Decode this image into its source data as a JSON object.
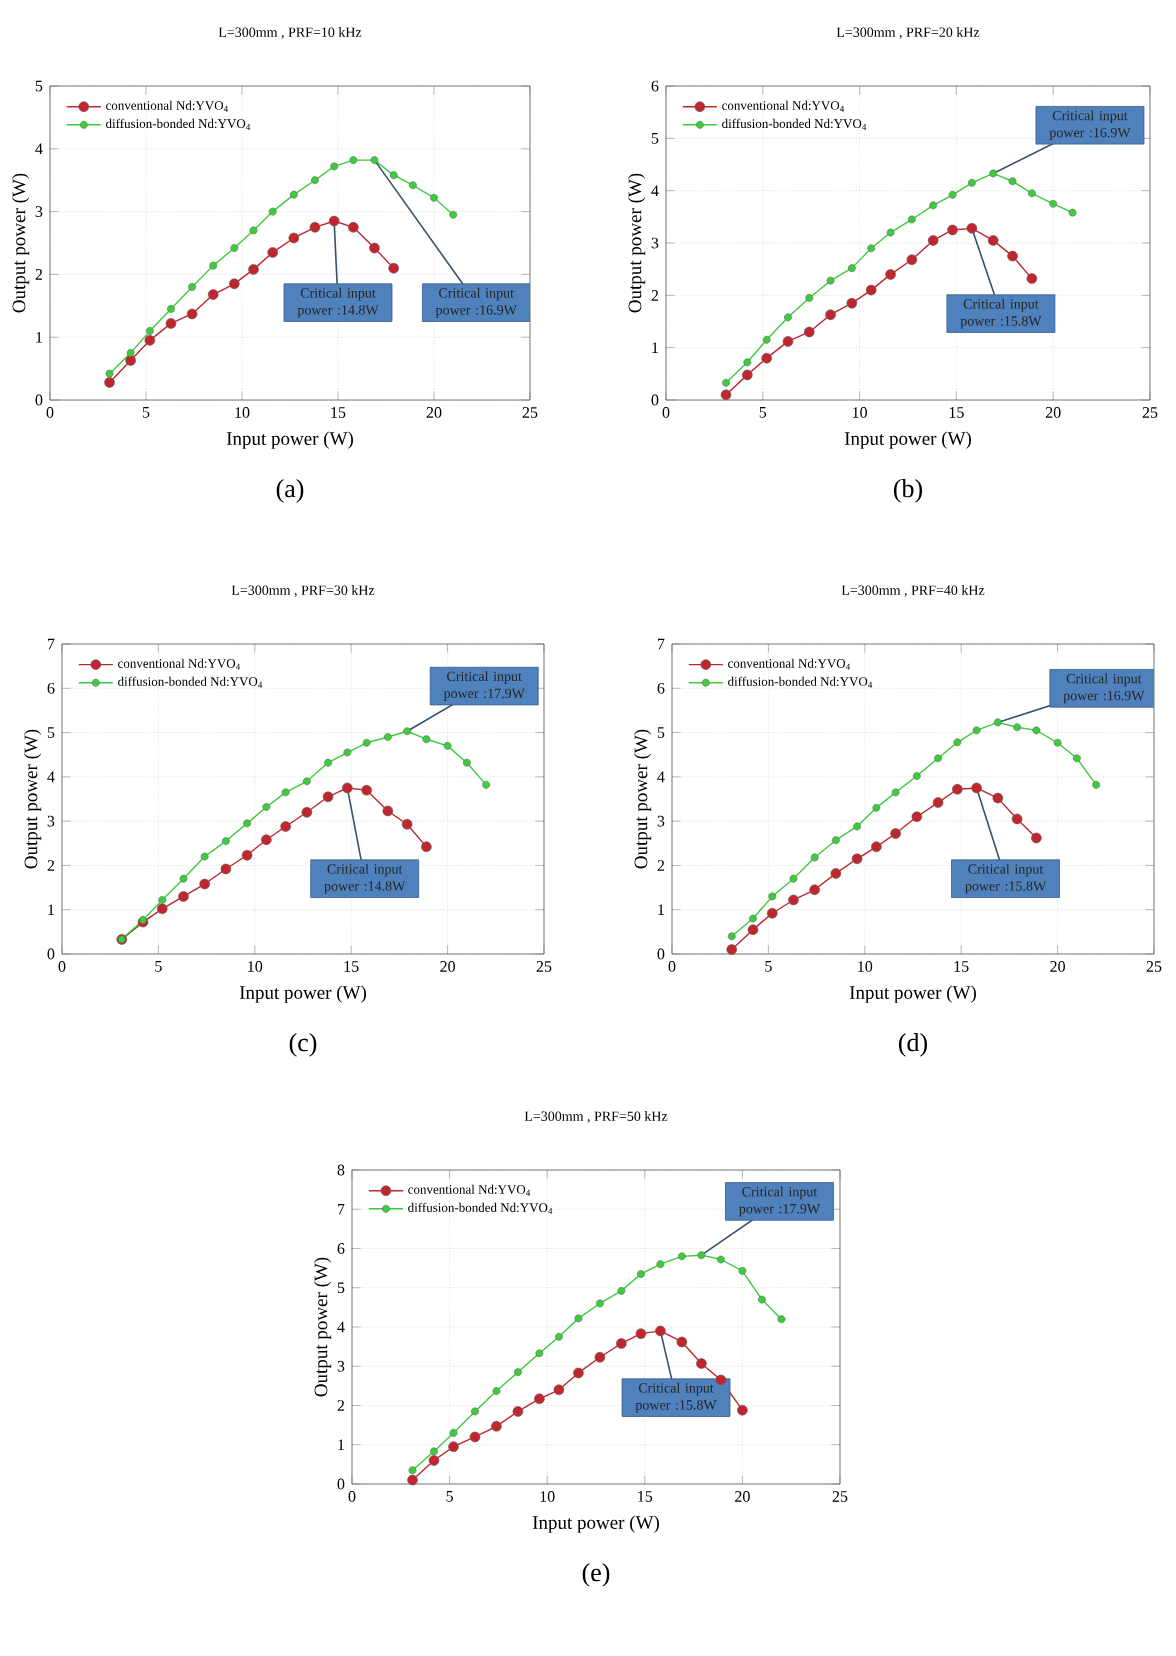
{
  "chart_data": [
    {
      "type": "line",
      "title": "L=300mm , PRF=10 kHz",
      "xlabel": "Input power (W)",
      "ylabel": "Output power (W)",
      "xlim": [
        0,
        25
      ],
      "ylim": [
        0,
        5
      ],
      "xticks": [
        0,
        5,
        10,
        15,
        20,
        25
      ],
      "yticks": [
        0,
        1,
        2,
        3,
        4,
        5
      ],
      "grid": true,
      "legend": "top left",
      "marker": "circle",
      "line_style": "solid",
      "series": [
        {
          "name": "conventional Nd:YVO$_{4}$",
          "color": "#c0262d",
          "x": [
            3.1,
            4.2,
            5.2,
            6.3,
            7.4,
            8.5,
            9.6,
            10.6,
            11.6,
            12.7,
            13.8,
            14.8,
            15.8,
            16.9,
            17.9
          ],
          "values": [
            0.28,
            0.63,
            0.95,
            1.22,
            1.37,
            1.68,
            1.85,
            2.08,
            2.35,
            2.58,
            2.75,
            2.85,
            2.75,
            2.42,
            2.1
          ]
        },
        {
          "name": "diffusion-bonded Nd:YVO$_{4}$",
          "color": "#3ccc3c",
          "x": [
            3.1,
            4.2,
            5.2,
            6.3,
            7.4,
            8.5,
            9.6,
            10.6,
            11.6,
            12.7,
            13.8,
            14.8,
            15.8,
            16.9,
            17.9,
            18.9,
            20,
            21
          ],
          "values": [
            0.42,
            0.75,
            1.1,
            1.45,
            1.8,
            2.14,
            2.42,
            2.7,
            3.0,
            3.27,
            3.5,
            3.72,
            3.82,
            3.82,
            3.58,
            3.42,
            3.22,
            2.95
          ]
        }
      ],
      "annotations": [
        {
          "text": "Critical input power :14.8W",
          "x": 14.8,
          "y": 2.85
        },
        {
          "text": "Critical input power :16.9W",
          "x": 16.9,
          "y": 3.82
        },
        "(a)"
      ]
    },
    {
      "type": "line",
      "title": "L=300mm , PRF=20 kHz",
      "xlabel": "Input power (W)",
      "ylabel": "Output power (W)",
      "xlim": [
        0,
        25
      ],
      "ylim": [
        0,
        6
      ],
      "xticks": [
        0,
        5,
        10,
        15,
        20,
        25
      ],
      "yticks": [
        0,
        1,
        2,
        3,
        4,
        5,
        6
      ],
      "grid": true,
      "legend": "top left",
      "marker": "circle",
      "line_style": "solid",
      "series": [
        {
          "name": "conventional Nd:YVO$_{4}$",
          "color": "#c0262d",
          "x": [
            3.1,
            4.2,
            5.2,
            6.3,
            7.4,
            8.5,
            9.6,
            10.6,
            11.6,
            12.7,
            13.8,
            14.8,
            15.8,
            16.9,
            17.9,
            18.9
          ],
          "values": [
            0.1,
            0.48,
            0.8,
            1.12,
            1.3,
            1.63,
            1.85,
            2.1,
            2.4,
            2.68,
            3.05,
            3.25,
            3.28,
            3.05,
            2.75,
            2.32
          ]
        },
        {
          "name": "diffusion-bonded Nd:YVO$_{4}$",
          "color": "#3ccc3c",
          "x": [
            3.1,
            4.2,
            5.2,
            6.3,
            7.4,
            8.5,
            9.6,
            10.6,
            11.6,
            12.7,
            13.8,
            14.8,
            15.8,
            16.9,
            17.9,
            18.9,
            20,
            21
          ],
          "values": [
            0.33,
            0.72,
            1.15,
            1.58,
            1.95,
            2.28,
            2.52,
            2.9,
            3.2,
            3.45,
            3.72,
            3.92,
            4.15,
            4.33,
            4.18,
            3.95,
            3.75,
            3.58
          ]
        }
      ],
      "annotations": [
        {
          "text": "Critical input power :15.8W",
          "x": 15.8,
          "y": 3.28
        },
        {
          "text": "Critical input power :16.9W",
          "x": 16.9,
          "y": 4.33
        },
        "(b)"
      ]
    },
    {
      "type": "line",
      "title": "L=300mm , PRF=30 kHz",
      "xlabel": "Input power (W)",
      "ylabel": "Output power (W)",
      "xlim": [
        0,
        25
      ],
      "ylim": [
        0,
        7
      ],
      "xticks": [
        0,
        5,
        10,
        15,
        20,
        25
      ],
      "yticks": [
        0,
        1,
        2,
        3,
        4,
        5,
        6,
        7
      ],
      "grid": true,
      "legend": "top left",
      "marker": "circle",
      "line_style": "solid",
      "series": [
        {
          "name": "conventional Nd:YVO$_{4}$",
          "color": "#c0262d",
          "x": [
            3.1,
            4.2,
            5.2,
            6.3,
            7.4,
            8.5,
            9.6,
            10.6,
            11.6,
            12.7,
            13.8,
            14.8,
            15.8,
            16.9,
            17.9,
            18.9
          ],
          "values": [
            0.33,
            0.72,
            1.02,
            1.3,
            1.58,
            1.92,
            2.23,
            2.58,
            2.88,
            3.2,
            3.55,
            3.75,
            3.7,
            3.23,
            2.93,
            2.42
          ]
        },
        {
          "name": "diffusion-bonded Nd:YVO$_{4}$",
          "color": "#3ccc3c",
          "x": [
            3.1,
            4.2,
            5.2,
            6.3,
            7.4,
            8.5,
            9.6,
            10.6,
            11.6,
            12.7,
            13.8,
            14.8,
            15.8,
            16.9,
            17.9,
            18.9,
            20,
            21,
            22
          ],
          "values": [
            0.33,
            0.77,
            1.22,
            1.7,
            2.2,
            2.55,
            2.95,
            3.32,
            3.65,
            3.9,
            4.32,
            4.55,
            4.77,
            4.9,
            5.03,
            4.85,
            4.7,
            4.32,
            3.82
          ]
        }
      ],
      "annotations": [
        {
          "text": "Critical input power :14.8W",
          "x": 14.8,
          "y": 3.75
        },
        {
          "text": "Critical input power :17.9W",
          "x": 17.9,
          "y": 5.03
        },
        "(c)"
      ]
    },
    {
      "type": "line",
      "title": "L=300mm , PRF=40 kHz",
      "xlabel": "Input power (W)",
      "ylabel": "Output power (W)",
      "xlim": [
        0,
        25
      ],
      "ylim": [
        0,
        7
      ],
      "xticks": [
        0,
        5,
        10,
        15,
        20,
        25
      ],
      "yticks": [
        0,
        1,
        2,
        3,
        4,
        5,
        6,
        7
      ],
      "grid": true,
      "legend": "top left",
      "marker": "circle",
      "line_style": "solid",
      "series": [
        {
          "name": "conventional Nd:YVO$_{4}$",
          "color": "#c0262d",
          "x": [
            3.1,
            4.2,
            5.2,
            6.3,
            7.4,
            8.5,
            9.6,
            10.6,
            11.6,
            12.7,
            13.8,
            14.8,
            15.8,
            16.9,
            17.9,
            18.9
          ],
          "values": [
            0.1,
            0.55,
            0.92,
            1.22,
            1.45,
            1.82,
            2.15,
            2.42,
            2.72,
            3.1,
            3.42,
            3.72,
            3.75,
            3.52,
            3.05,
            2.62
          ]
        },
        {
          "name": "diffusion-bonded Nd:YVO$_{4}$",
          "color": "#3ccc3c",
          "x": [
            3.1,
            4.2,
            5.2,
            6.3,
            7.4,
            8.5,
            9.6,
            10.6,
            11.6,
            12.7,
            13.8,
            14.8,
            15.8,
            16.9,
            17.9,
            18.9,
            20,
            21,
            22
          ],
          "values": [
            0.4,
            0.8,
            1.3,
            1.7,
            2.18,
            2.57,
            2.88,
            3.3,
            3.65,
            4.02,
            4.42,
            4.78,
            5.05,
            5.23,
            5.12,
            5.05,
            4.77,
            4.42,
            3.82
          ]
        }
      ],
      "annotations": [
        {
          "text": "Critical input power :15.8W",
          "x": 15.8,
          "y": 3.75
        },
        {
          "text": "Critical input power :16.9W",
          "x": 16.9,
          "y": 5.23
        },
        "(d)"
      ]
    },
    {
      "type": "line",
      "title": "L=300mm , PRF=50 kHz",
      "xlabel": "Input power (W)",
      "ylabel": "Output power (W)",
      "xlim": [
        0,
        25
      ],
      "ylim": [
        0,
        8
      ],
      "xticks": [
        0,
        5,
        10,
        15,
        20,
        25
      ],
      "yticks": [
        0,
        1,
        2,
        3,
        4,
        5,
        6,
        7,
        8
      ],
      "grid": true,
      "legend": "top left",
      "marker": "circle",
      "line_style": "solid",
      "series": [
        {
          "name": "conventional Nd:YVO$_{4}$",
          "color": "#c0262d",
          "x": [
            3.1,
            4.2,
            5.2,
            6.3,
            7.4,
            8.5,
            9.6,
            10.6,
            11.6,
            12.7,
            13.8,
            14.8,
            15.8,
            16.9,
            17.9,
            18.9,
            20
          ],
          "values": [
            0.1,
            0.6,
            0.95,
            1.2,
            1.47,
            1.85,
            2.17,
            2.4,
            2.83,
            3.23,
            3.58,
            3.83,
            3.9,
            3.62,
            3.07,
            2.65,
            1.88
          ]
        },
        {
          "name": "diffusion-bonded Nd:YVO$_{4}$",
          "color": "#3ccc3c",
          "x": [
            3.1,
            4.2,
            5.2,
            6.3,
            7.4,
            8.5,
            9.6,
            10.6,
            11.6,
            12.7,
            13.8,
            14.8,
            15.8,
            16.9,
            17.9,
            18.9,
            20,
            21,
            22
          ],
          "values": [
            0.35,
            0.83,
            1.3,
            1.85,
            2.37,
            2.85,
            3.33,
            3.75,
            4.22,
            4.6,
            4.92,
            5.35,
            5.6,
            5.8,
            5.83,
            5.72,
            5.43,
            4.7,
            4.2
          ]
        }
      ],
      "annotations": [
        {
          "text": "Critical input power :15.8W",
          "x": 15.8,
          "y": 3.9
        },
        {
          "text": "Critical input power :17.9W",
          "x": 17.9,
          "y": 5.83
        },
        "(e)"
      ]
    }
  ]
}
